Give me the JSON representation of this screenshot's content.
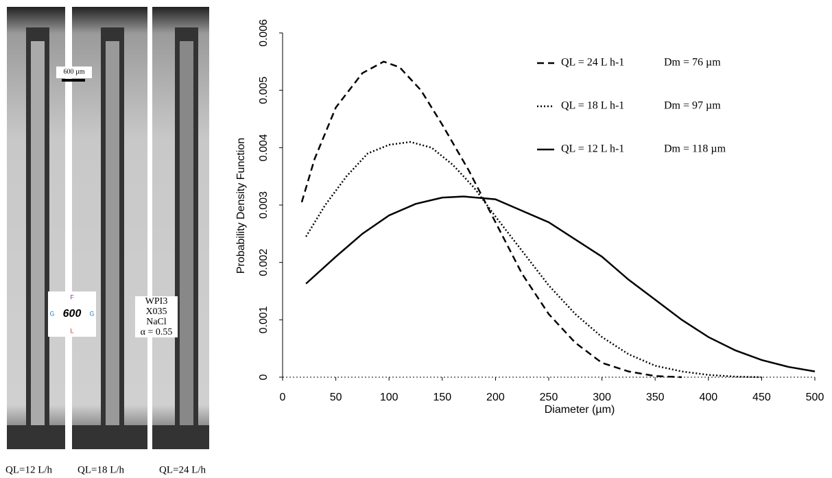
{
  "chart_data": {
    "type": "line",
    "x_label": "Diameter (µm)",
    "y_label": "Probability Density Function",
    "xlim": [
      0,
      500
    ],
    "xticks": [
      0,
      50,
      100,
      150,
      200,
      250,
      300,
      350,
      400,
      450,
      500
    ],
    "ylim": [
      0,
      0.006
    ],
    "yticks": [
      0,
      0.001,
      0.002,
      0.003,
      0.004,
      0.005,
      0.006
    ],
    "series": [
      {
        "name": "QL = 24 L h-1",
        "dm_label": "Dm = 76 µm",
        "color": "#000000",
        "dash": "dashed",
        "x": [
          18,
          30,
          50,
          75,
          95,
          110,
          130,
          150,
          175,
          200,
          225,
          250,
          275,
          300,
          325,
          350,
          375
        ],
        "values": [
          0.00305,
          0.0038,
          0.0047,
          0.0053,
          0.0055,
          0.0054,
          0.005,
          0.0044,
          0.0036,
          0.0027,
          0.0018,
          0.0011,
          0.0006,
          0.00025,
          0.0001,
          2e-05,
          0
        ]
      },
      {
        "name": "QL = 18 L h-1",
        "dm_label": "Dm = 97 µm",
        "color": "#000000",
        "dash": "dotted",
        "x": [
          22,
          40,
          60,
          80,
          100,
          120,
          140,
          160,
          180,
          200,
          225,
          250,
          275,
          300,
          325,
          350,
          375,
          400,
          425,
          450
        ],
        "values": [
          0.00245,
          0.003,
          0.0035,
          0.0039,
          0.00405,
          0.0041,
          0.004,
          0.0037,
          0.0033,
          0.0028,
          0.0022,
          0.0016,
          0.0011,
          0.0007,
          0.0004,
          0.0002,
          0.0001,
          4e-05,
          1e-05,
          0
        ]
      },
      {
        "name": "QL = 12 L h-1",
        "dm_label": "Dm = 118 µm",
        "color": "#000000",
        "dash": "solid",
        "x": [
          22,
          50,
          75,
          100,
          125,
          150,
          170,
          200,
          225,
          250,
          275,
          300,
          325,
          350,
          375,
          400,
          425,
          450,
          475,
          500
        ],
        "values": [
          0.00163,
          0.0021,
          0.0025,
          0.00282,
          0.00302,
          0.00313,
          0.00315,
          0.0031,
          0.0029,
          0.0027,
          0.0024,
          0.0021,
          0.0017,
          0.00135,
          0.001,
          0.0007,
          0.00047,
          0.0003,
          0.00018,
          0.0001
        ]
      }
    ]
  },
  "photo_panel": {
    "scale_bar": "600 µm",
    "logo": {
      "center": "600",
      "top": "F",
      "left": "G",
      "right": "G",
      "bottom": "L"
    },
    "conditions": [
      "WPI3",
      "X035",
      "NaCl",
      "α = 0.55"
    ],
    "strip_labels": [
      "QL=12 L/h",
      "QL=18 L/h",
      "QL=24 L/h"
    ]
  }
}
